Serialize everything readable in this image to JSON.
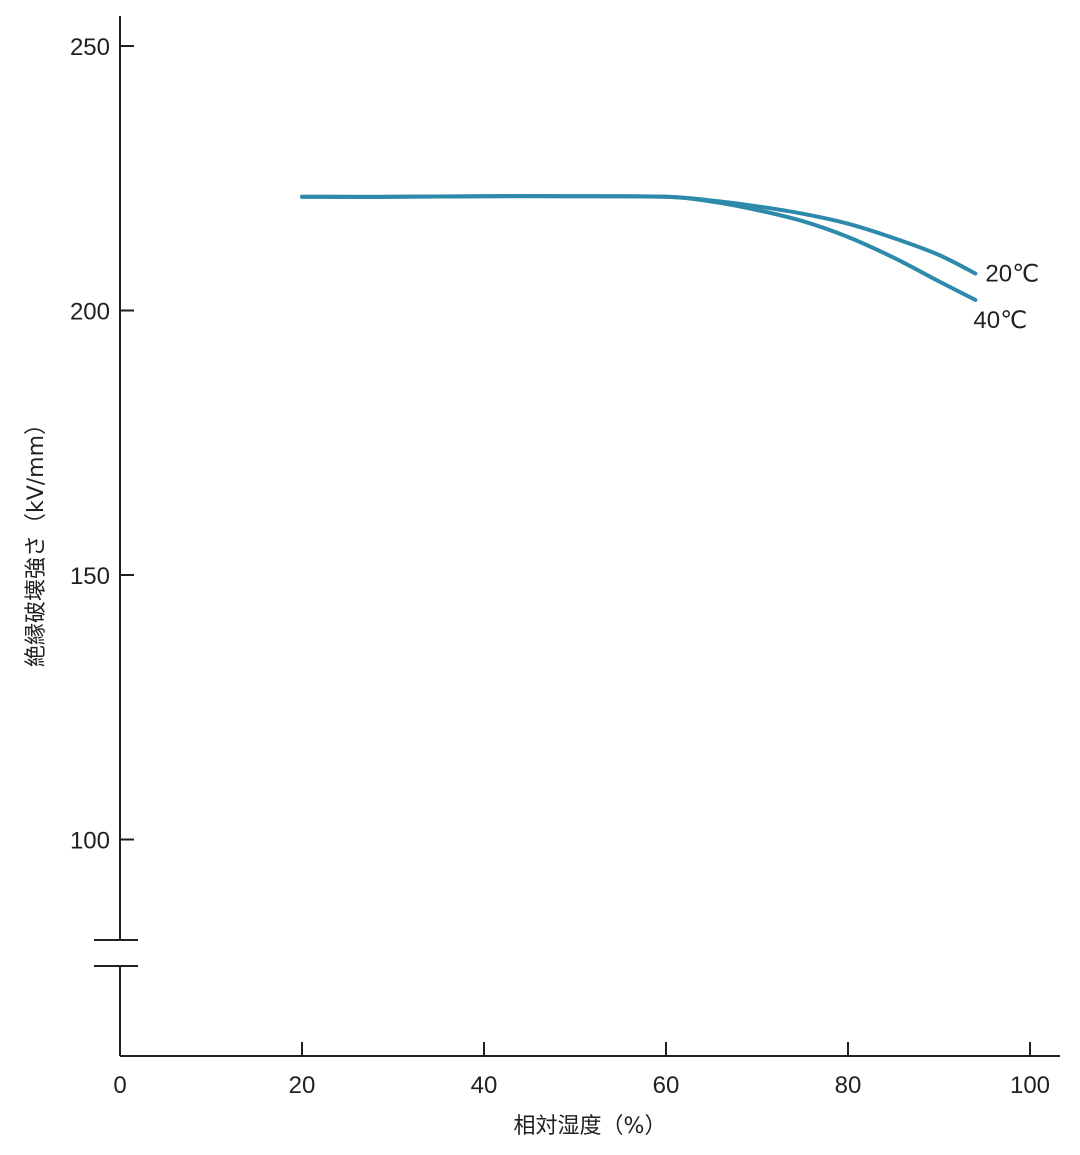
{
  "chart_data": {
    "type": "line",
    "xlabel": "相対湿度（%）",
    "ylabel": "絶縁破壊強さ（kV/mm）",
    "xlim": [
      0,
      102
    ],
    "ylim": [
      70,
      256
    ],
    "x_ticks": [
      0,
      20,
      40,
      60,
      80,
      100
    ],
    "x_tick_labels": [
      "0",
      "20",
      "40",
      "60",
      "80",
      "100"
    ],
    "y_ticks": [
      100,
      150,
      200,
      250
    ],
    "y_tick_labels": [
      "100",
      "150",
      "200",
      "250"
    ],
    "axis_break": true,
    "grid": false,
    "line_color": "#2e8aaa",
    "series": [
      {
        "name": "20℃",
        "x": [
          20,
          30,
          40,
          50,
          60,
          65,
          70,
          75,
          80,
          85,
          90,
          94
        ],
        "y": [
          221.5,
          221.5,
          221.6,
          221.6,
          221.5,
          220.8,
          219.7,
          218.3,
          216.4,
          213.7,
          210.5,
          207
        ]
      },
      {
        "name": "40℃",
        "x": [
          20,
          30,
          40,
          50,
          60,
          65,
          70,
          75,
          80,
          85,
          90,
          94
        ],
        "y": [
          221.5,
          221.5,
          221.6,
          221.6,
          221.5,
          220.6,
          219.0,
          216.9,
          213.9,
          210.0,
          205.5,
          202
        ]
      }
    ]
  }
}
